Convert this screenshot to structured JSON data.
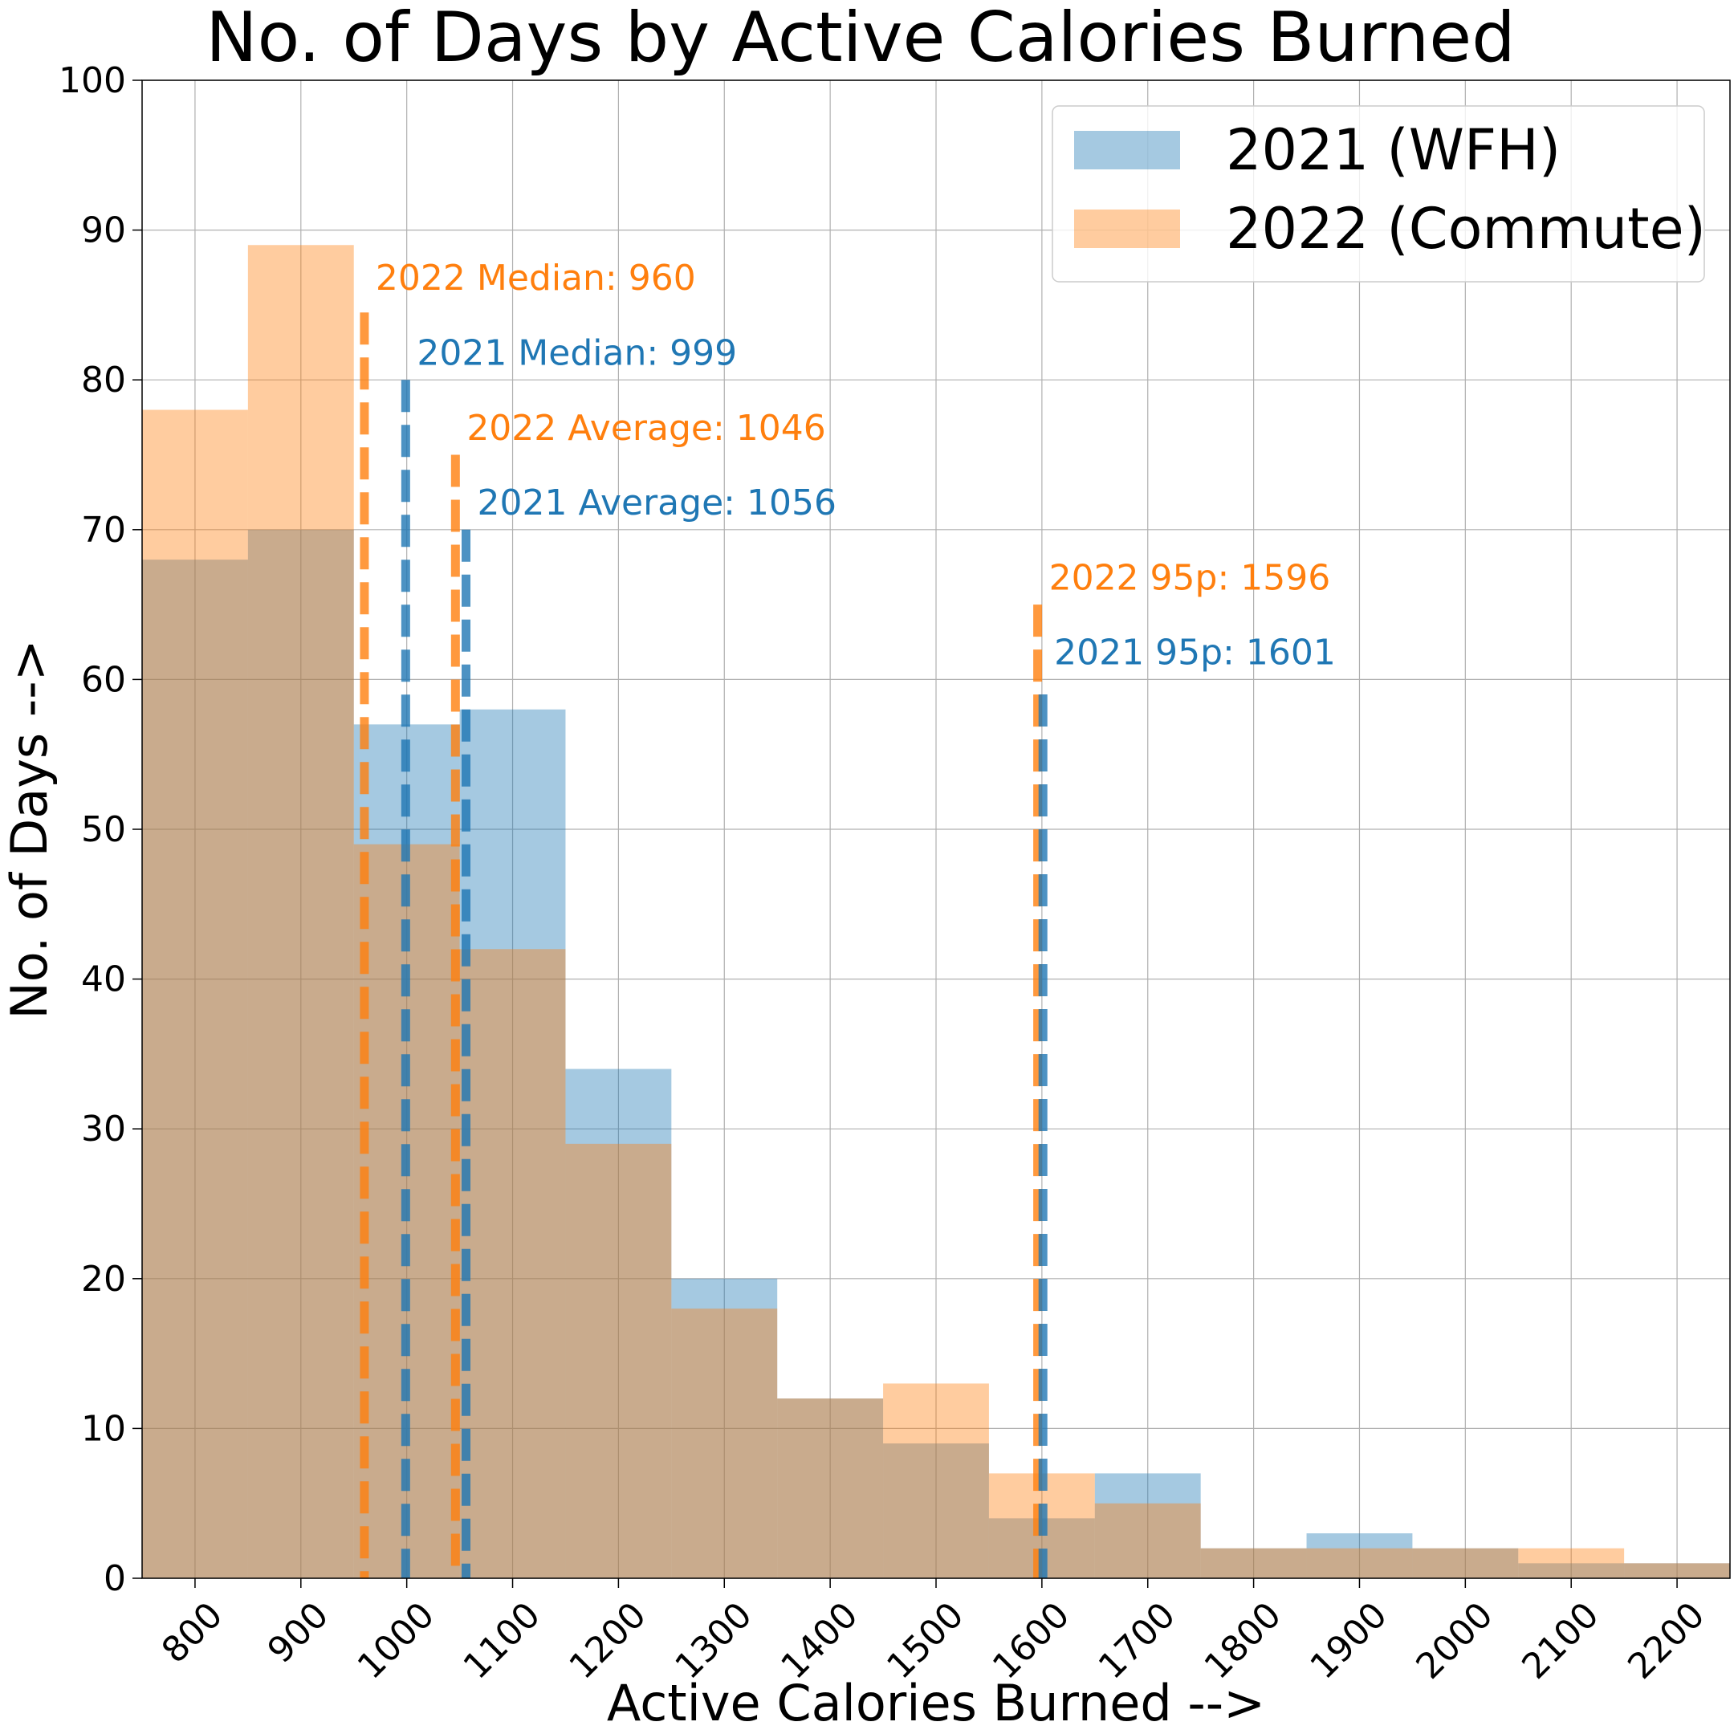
{
  "chart_data": {
    "type": "bar",
    "title": "No. of Days by Active Calories Burned",
    "xlabel": "Active Calories Burned -->",
    "ylabel": "No. of Days -->",
    "xlim": [
      750,
      2250
    ],
    "ylim": [
      0,
      100
    ],
    "xticks": [
      800,
      900,
      1000,
      1100,
      1200,
      1300,
      1400,
      1500,
      1600,
      1700,
      1800,
      1900,
      2000,
      2100,
      2200
    ],
    "yticks": [
      0,
      10,
      20,
      30,
      40,
      50,
      60,
      70,
      80,
      90,
      100
    ],
    "grid": true,
    "legend_position": "top-right",
    "bin_edges": [
      750,
      850,
      950,
      1050,
      1150,
      1250,
      1350,
      1450,
      1550,
      1650,
      1750,
      1850,
      1950,
      2050,
      2150,
      2250
    ],
    "series": [
      {
        "name": "2021 (WFH)",
        "color": "#1f77b4",
        "values": [
          68,
          70,
          57,
          58,
          34,
          20,
          12,
          9,
          4,
          7,
          2,
          3,
          2,
          1,
          1
        ]
      },
      {
        "name": "2022 (Commute)",
        "color": "#ff7f0e",
        "values": [
          78,
          89,
          49,
          42,
          29,
          18,
          12,
          13,
          7,
          5,
          2,
          2,
          2,
          2,
          1
        ]
      }
    ],
    "reference_lines": [
      {
        "label": "2022 Median: 960",
        "x": 960,
        "top": 84.5,
        "label_y": 86,
        "color": "#ff7f0e"
      },
      {
        "label": "2021 Median: 999",
        "x": 999,
        "top": 80,
        "label_y": 81,
        "color": "#1f77b4"
      },
      {
        "label": "2022 Average: 1046",
        "x": 1046,
        "top": 75,
        "label_y": 76,
        "color": "#ff7f0e"
      },
      {
        "label": "2021 Average: 1056",
        "x": 1056,
        "top": 70,
        "label_y": 71,
        "color": "#1f77b4"
      },
      {
        "label": "2022 95p: 1596",
        "x": 1596,
        "top": 65,
        "label_y": 66,
        "color": "#ff7f0e"
      },
      {
        "label": "2021 95p: 1601",
        "x": 1601,
        "top": 59,
        "label_y": 61,
        "color": "#1f77b4"
      }
    ]
  }
}
